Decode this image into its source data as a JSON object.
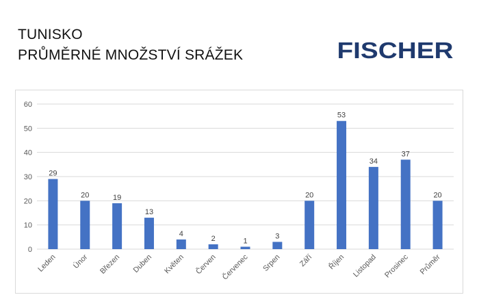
{
  "header": {
    "title_line1": "TUNISKO",
    "title_line2": "PRŮMĚRNÉ MNOŽSTVÍ SRÁŽEK"
  },
  "logo": {
    "text": "FISCHER",
    "color": "#1f3a6e"
  },
  "chart_data": {
    "type": "bar",
    "categories": [
      "Leden",
      "Únor",
      "Březen",
      "Duben",
      "Květen",
      "Červen",
      "Červenec",
      "Srpen",
      "Září",
      "Říjen",
      "Listopad",
      "Prosinec",
      "Průměr"
    ],
    "values": [
      29,
      20,
      19,
      13,
      4,
      2,
      1,
      3,
      20,
      53,
      34,
      37,
      20
    ],
    "title": "",
    "xlabel": "",
    "ylabel": "",
    "ylim": [
      0,
      60
    ],
    "yticks": [
      0,
      10,
      20,
      30,
      40,
      50,
      60
    ],
    "grid": true,
    "legend": "none",
    "bar_color": "#4472c4",
    "grid_color": "#d9d9d9"
  }
}
